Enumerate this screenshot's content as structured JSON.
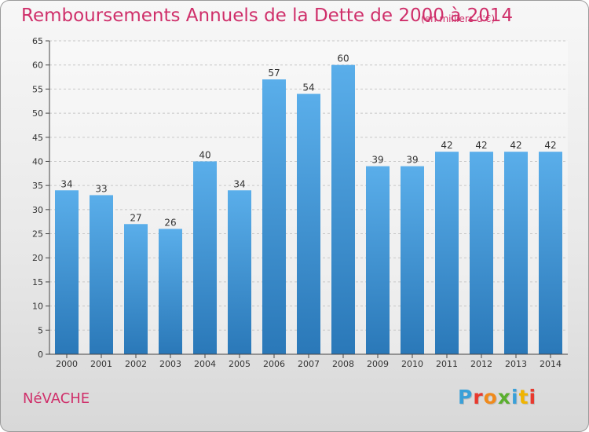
{
  "chart_data": {
    "type": "bar",
    "title": "Remboursements Annuels de la Dette de 2000 à 2014",
    "subtitle": "(en milliers d'€)",
    "categories": [
      "2000",
      "2001",
      "2002",
      "2003",
      "2004",
      "2005",
      "2006",
      "2007",
      "2008",
      "2009",
      "2010",
      "2011",
      "2012",
      "2013",
      "2014"
    ],
    "values": [
      34,
      33,
      27,
      26,
      40,
      34,
      57,
      54,
      60,
      39,
      39,
      42,
      42,
      42,
      42
    ],
    "ylim": [
      0,
      65
    ],
    "yticks": [
      0,
      5,
      10,
      15,
      20,
      25,
      30,
      35,
      40,
      45,
      50,
      55,
      60,
      65
    ],
    "grid": "y-major",
    "legend": "none",
    "bar_color_top": "#5aaeea",
    "bar_color_bottom": "#2a78b8"
  },
  "footer": {
    "commune": "NéVACHE",
    "logo_letters": [
      "P",
      "r",
      "o",
      "x",
      "i",
      "t",
      "i"
    ],
    "logo_colors": [
      "#3aa0d8",
      "#e8392e",
      "#f08a1c",
      "#5aaf2e",
      "#3aa0d8",
      "#f0b400",
      "#e8392e"
    ]
  },
  "colors": {
    "accent": "#cf2f6a"
  }
}
